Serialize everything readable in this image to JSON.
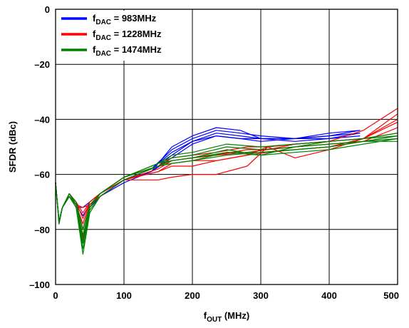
{
  "chart_data": {
    "type": "line",
    "xlabel": {
      "main": "f",
      "sub": "OUT",
      "rest": " (MHz)"
    },
    "ylabel": "SFDR (dBc)",
    "xlim": [
      0,
      500
    ],
    "ylim": [
      -100,
      0
    ],
    "xticks": [
      0,
      100,
      200,
      300,
      400,
      500
    ],
    "xtick_labels": [
      "0",
      "100",
      "200",
      "300",
      "400",
      "500"
    ],
    "yticks": [
      0,
      -20,
      -40,
      -60,
      -80,
      -100
    ],
    "ytick_labels": [
      "0",
      "–20",
      "–40",
      "–60",
      "–80",
      "–100"
    ],
    "grid": true,
    "legend": {
      "position": "top-left",
      "entries": [
        {
          "main": "f",
          "sub": "DAC",
          "rest": " = 983MHz",
          "color": "#0000ff"
        },
        {
          "main": "f",
          "sub": "DAC",
          "rest": " = 1228MHz",
          "color": "#ff0000"
        },
        {
          "main": "f",
          "sub": "DAC",
          "rest": " = 1474MHz",
          "color": "#008000"
        }
      ]
    },
    "series": [
      {
        "color": "#0000ff",
        "lines": [
          {
            "x": [
              0,
              5,
              10,
              20,
              30,
              40,
              50,
              65,
              100,
              140,
              170,
              200,
              235,
              270,
              300,
              350,
              400,
              445
            ],
            "y": [
              -63,
              -78,
              -72,
              -68,
              -72,
              -72,
              -70,
              -67,
              -62,
              -59,
              -50,
              -46,
              -43,
              -44,
              -47,
              -47,
              -45,
              -44
            ]
          },
          {
            "x": [
              0,
              5,
              10,
              20,
              30,
              40,
              50,
              65,
              100,
              140,
              170,
              200,
              235,
              270,
              300,
              350,
              400,
              445
            ],
            "y": [
              -63,
              -77,
              -72,
              -67,
              -71,
              -75,
              -71,
              -68,
              -62,
              -58,
              -51,
              -47,
              -44,
              -45,
              -46,
              -47,
              -46,
              -44
            ]
          },
          {
            "x": [
              0,
              5,
              10,
              20,
              30,
              40,
              50,
              65,
              100,
              140,
              170,
              200,
              235,
              270,
              300,
              350,
              400,
              445
            ],
            "y": [
              -63,
              -77,
              -72,
              -67,
              -70,
              -80,
              -71,
              -68,
              -62,
              -58,
              -52,
              -48,
              -45,
              -46,
              -47,
              -47,
              -46,
              -45
            ]
          },
          {
            "x": [
              0,
              5,
              10,
              20,
              30,
              40,
              50,
              65,
              100,
              140,
              170,
              200,
              235,
              270,
              300,
              350,
              400,
              445
            ],
            "y": [
              -63,
              -77,
              -72,
              -68,
              -71,
              -83,
              -72,
              -68,
              -62,
              -59,
              -53,
              -48,
              -46,
              -47,
              -48,
              -47,
              -47,
              -45
            ]
          },
          {
            "x": [
              0,
              5,
              10,
              20,
              30,
              40,
              50,
              65,
              100,
              140,
              170,
              200,
              235,
              270,
              300,
              350,
              400,
              445
            ],
            "y": [
              -63,
              -77,
              -72,
              -68,
              -71,
              -85,
              -72,
              -68,
              -63,
              -59,
              -54,
              -49,
              -46,
              -47,
              -47,
              -48,
              -47,
              -46
            ]
          }
        ]
      },
      {
        "color": "#ff0000",
        "lines": [
          {
            "x": [
              0,
              5,
              10,
              20,
              30,
              40,
              50,
              65,
              100,
              150,
              170,
              200,
              235,
              280,
              310,
              350,
              400,
              450,
              500
            ],
            "y": [
              -63,
              -77,
              -72,
              -68,
              -71,
              -83,
              -71,
              -68,
              -62,
              -62,
              -61,
              -60,
              -60,
              -57,
              -50,
              -49,
              -48,
              -44,
              -36
            ]
          },
          {
            "x": [
              0,
              5,
              10,
              20,
              30,
              40,
              50,
              65,
              100,
              150,
              170,
              200,
              235,
              280,
              310,
              350,
              400,
              450,
              500
            ],
            "y": [
              -63,
              -77,
              -72,
              -68,
              -71,
              -80,
              -71,
              -68,
              -62,
              -59,
              -57,
              -57,
              -55,
              -53,
              -50,
              -54,
              -51,
              -47,
              -41
            ]
          },
          {
            "x": [
              0,
              5,
              10,
              20,
              30,
              40,
              50,
              65,
              100,
              150,
              170,
              200,
              235,
              280,
              310,
              350,
              400,
              450,
              500
            ],
            "y": [
              -63,
              -77,
              -72,
              -67,
              -71,
              -78,
              -70,
              -67,
              -62,
              -58,
              -55,
              -54,
              -53,
              -52,
              -51,
              -50,
              -49,
              -48,
              -43
            ]
          },
          {
            "x": [
              0,
              5,
              10,
              20,
              30,
              40,
              50,
              65,
              100,
              150,
              170,
              200,
              235,
              280,
              310,
              350,
              400,
              450,
              500
            ],
            "y": [
              -63,
              -77,
              -72,
              -67,
              -70,
              -76,
              -70,
              -67,
              -61,
              -57,
              -54,
              -53,
              -52,
              -50,
              -50,
              -49,
              -48,
              -47,
              -45
            ]
          },
          {
            "x": [
              0,
              5,
              10,
              20,
              30,
              40,
              50,
              65,
              100,
              150,
              170,
              200,
              235,
              280,
              310,
              350,
              400,
              450,
              500
            ],
            "y": [
              -63,
              -77,
              -72,
              -67,
              -70,
              -74,
              -70,
              -67,
              -61,
              -57,
              -55,
              -54,
              -53,
              -51,
              -51,
              -49,
              -48,
              -47,
              -38
            ]
          },
          {
            "x": [
              0,
              5,
              10,
              20,
              30,
              40,
              50,
              65,
              100,
              150,
              170,
              200,
              235,
              280,
              310,
              350,
              400,
              450,
              500
            ],
            "y": [
              -63,
              -77,
              -72,
              -68,
              -71,
              -72,
              -71,
              -68,
              -62,
              -59,
              -56,
              -55,
              -55,
              -53,
              -52,
              -51,
              -50,
              -47,
              -40
            ]
          }
        ]
      },
      {
        "color": "#008000",
        "lines": [
          {
            "x": [
              0,
              5,
              10,
              20,
              30,
              40,
              50,
              65,
              100,
              150,
              170,
              200,
              250,
              300,
              350,
              400,
              450,
              500
            ],
            "y": [
              -63,
              -78,
              -72,
              -68,
              -72,
              -89,
              -74,
              -68,
              -62,
              -57,
              -56,
              -55,
              -53,
              -52,
              -51,
              -50,
              -48,
              -47
            ]
          },
          {
            "x": [
              0,
              5,
              10,
              20,
              30,
              40,
              50,
              65,
              100,
              150,
              170,
              200,
              250,
              300,
              350,
              400,
              450,
              500
            ],
            "y": [
              -63,
              -77,
              -72,
              -68,
              -71,
              -87,
              -73,
              -68,
              -62,
              -57,
              -56,
              -55,
              -52,
              -52,
              -51,
              -50,
              -48,
              -46
            ]
          },
          {
            "x": [
              0,
              5,
              10,
              20,
              30,
              40,
              50,
              65,
              100,
              150,
              170,
              200,
              250,
              300,
              350,
              400,
              450,
              500
            ],
            "y": [
              -63,
              -77,
              -72,
              -68,
              -71,
              -85,
              -72,
              -67,
              -61,
              -56,
              -55,
              -54,
              -51,
              -53,
              -50,
              -49,
              -48,
              -48
            ]
          },
          {
            "x": [
              0,
              5,
              10,
              20,
              30,
              40,
              50,
              65,
              100,
              150,
              170,
              200,
              250,
              300,
              350,
              400,
              450,
              500
            ],
            "y": [
              -63,
              -77,
              -72,
              -67,
              -71,
              -82,
              -72,
              -67,
              -61,
              -56,
              -54,
              -53,
              -50,
              -51,
              -50,
              -48,
              -47,
              -46
            ]
          },
          {
            "x": [
              0,
              5,
              10,
              20,
              30,
              40,
              50,
              65,
              100,
              150,
              170,
              200,
              250,
              300,
              350,
              400,
              450,
              500
            ],
            "y": [
              -63,
              -77,
              -72,
              -67,
              -70,
              -80,
              -71,
              -67,
              -61,
              -56,
              -53,
              -52,
              -49,
              -50,
              -49,
              -48,
              -47,
              -45
            ]
          },
          {
            "x": [
              0,
              5,
              10,
              20,
              30,
              40,
              50,
              65,
              100,
              150,
              170,
              200,
              250,
              300,
              350,
              400,
              450,
              500
            ],
            "y": [
              -63,
              -77,
              -72,
              -67,
              -71,
              -84,
              -72,
              -67,
              -61,
              -57,
              -55,
              -54,
              -52,
              -53,
              -52,
              -51,
              -49,
              -47
            ]
          }
        ]
      }
    ]
  }
}
